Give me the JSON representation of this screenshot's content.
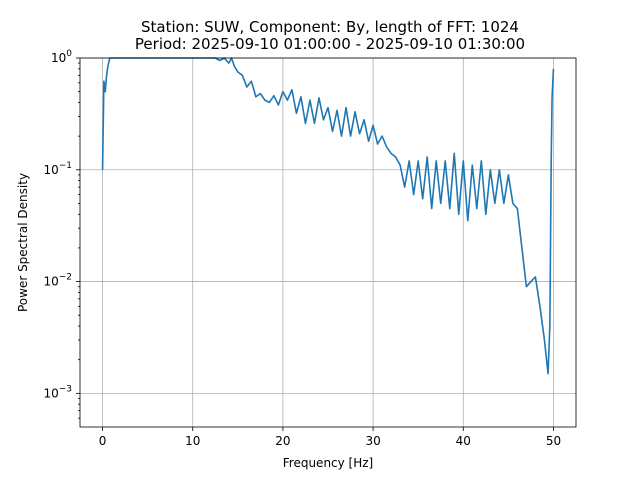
{
  "chart_data": {
    "type": "line",
    "title": "Station: SUW, Component: By, length of FFT: 1024",
    "subtitle": "Period: 2025-09-10 01:00:00 - 2025-09-10 01:30:00",
    "xlabel": "Frequency [Hz]",
    "ylabel": "Power Spectral Density",
    "xlim": [
      -2.5,
      52.5
    ],
    "ylim": [
      0.0005,
      1
    ],
    "yscale": "log",
    "grid": true,
    "color": "#1f77b4",
    "xticks": [
      0,
      10,
      20,
      30,
      40,
      50
    ],
    "xtick_labels": [
      "0",
      "10",
      "20",
      "30",
      "40",
      "50"
    ],
    "yticks": [
      0.001,
      0.01,
      0.1,
      1
    ],
    "ytick_labels": [
      {
        "base": "10",
        "exp": "−3"
      },
      {
        "base": "10",
        "exp": "−2"
      },
      {
        "base": "10",
        "exp": "−1"
      },
      {
        "base": "10",
        "exp": "0"
      }
    ],
    "series": [
      {
        "x": [
          0,
          0.15,
          0.3,
          0.45,
          0.6,
          0.8,
          1.0,
          1.2,
          12.0,
          12.5,
          13.0,
          13.5,
          14.0,
          14.3,
          14.6,
          15.0,
          15.5,
          16.0,
          16.5,
          17.0,
          17.5,
          18.0,
          18.5,
          19.0,
          19.5,
          20.0,
          20.5,
          21.0,
          21.5,
          22.0,
          22.5,
          23.0,
          23.5,
          24.0,
          24.5,
          25.0,
          25.5,
          26.0,
          26.5,
          27.0,
          27.5,
          28.0,
          28.5,
          29.0,
          29.5,
          30.0,
          30.5,
          31.0,
          31.5,
          32.0,
          32.5,
          33.0,
          33.5,
          34.0,
          34.5,
          35.0,
          35.5,
          36.0,
          36.5,
          37.0,
          37.5,
          38.0,
          38.5,
          39.0,
          39.5,
          40.0,
          40.5,
          41.0,
          41.5,
          42.0,
          42.5,
          43.0,
          43.5,
          44.0,
          44.5,
          45.0,
          45.5,
          46.0,
          46.5,
          47.0,
          47.5,
          48.0,
          48.5,
          49.0,
          49.4,
          49.6,
          49.75,
          49.85,
          50.0
        ],
        "y": [
          0.1,
          0.62,
          0.5,
          0.7,
          0.85,
          1.0,
          1.0,
          1.0,
          1.0,
          1.0,
          0.95,
          1.0,
          0.9,
          1.0,
          0.85,
          0.75,
          0.7,
          0.55,
          0.62,
          0.45,
          0.48,
          0.42,
          0.4,
          0.46,
          0.38,
          0.5,
          0.42,
          0.52,
          0.32,
          0.45,
          0.26,
          0.42,
          0.26,
          0.44,
          0.28,
          0.36,
          0.22,
          0.34,
          0.2,
          0.36,
          0.2,
          0.33,
          0.21,
          0.28,
          0.18,
          0.25,
          0.17,
          0.2,
          0.16,
          0.14,
          0.13,
          0.11,
          0.07,
          0.12,
          0.06,
          0.12,
          0.055,
          0.13,
          0.045,
          0.12,
          0.05,
          0.12,
          0.045,
          0.14,
          0.04,
          0.12,
          0.035,
          0.11,
          0.045,
          0.12,
          0.04,
          0.1,
          0.05,
          0.1,
          0.05,
          0.09,
          0.05,
          0.045,
          0.02,
          0.009,
          0.01,
          0.011,
          0.006,
          0.003,
          0.0015,
          0.004,
          0.12,
          0.45,
          0.8
        ]
      }
    ]
  }
}
